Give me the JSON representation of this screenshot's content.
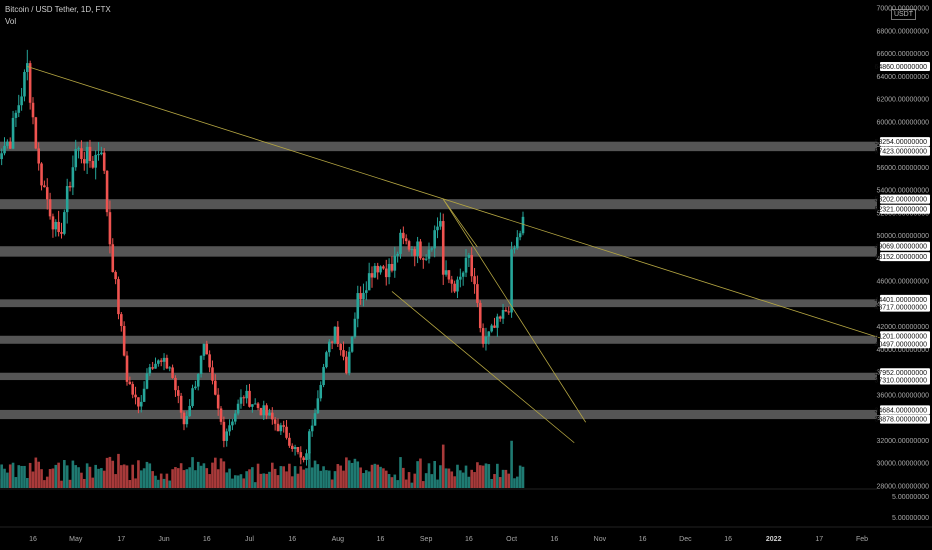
{
  "header": {
    "title": "Bitcoin / USD Tether, 1D, FTX",
    "indicator": "Vol",
    "currency_badge": "USDT"
  },
  "colors": {
    "background": "#000000",
    "up": "#26a69a",
    "down": "#ef5350",
    "vol_up": "#1f7a72",
    "vol_down": "#a83a3a",
    "band": "#9a9a9a",
    "trendline": "#b5a642",
    "axis_text": "#a8a8a8",
    "label_bg": "#ffffff"
  },
  "chart_data": {
    "type": "candlestick",
    "title": "",
    "y_axis": {
      "ticks": [
        "70000.00000000",
        "68000.00000000",
        "66000.00000000",
        "64000.00000000",
        "62000.00000000",
        "60000.00000000",
        "58000.00000000",
        "56000.00000000",
        "54000.00000000",
        "52000.00000000",
        "50000.00000000",
        "48000.00000000",
        "46000.00000000",
        "44000.00000000",
        "42000.00000000",
        "40000.00000000",
        "38000.00000000",
        "36000.00000000",
        "34000.00000000",
        "32000.00000000",
        "30000.00000000",
        "28000.00000000"
      ],
      "tick_values": [
        70000,
        68000,
        66000,
        64000,
        62000,
        60000,
        58000,
        56000,
        54000,
        52000,
        50000,
        48000,
        46000,
        44000,
        42000,
        40000,
        38000,
        36000,
        34000,
        32000,
        30000,
        28000
      ],
      "ylim": [
        27000,
        70500
      ],
      "volume_ticks": [
        "5.00000000",
        "5.00000000"
      ]
    },
    "x_axis": {
      "ticks": [
        "16",
        "May",
        "17",
        "Jun",
        "16",
        "Jul",
        "16",
        "Aug",
        "16",
        "Sep",
        "16",
        "Oct",
        "16",
        "Nov",
        "16",
        "Dec",
        "16",
        "2022",
        "17",
        "Feb"
      ],
      "tick_dates": [
        "2021-04-16",
        "2021-05-01",
        "2021-05-17",
        "2021-06-01",
        "2021-06-16",
        "2021-07-01",
        "2021-07-16",
        "2021-08-01",
        "2021-08-16",
        "2021-09-01",
        "2021-09-16",
        "2021-10-01",
        "2021-10-16",
        "2021-11-01",
        "2021-11-16",
        "2021-12-01",
        "2021-12-16",
        "2022-01-01",
        "2022-01-17",
        "2022-02-01"
      ],
      "bold": [
        "2022"
      ]
    },
    "level_labels": [
      "64860.00000000",
      "58254.00000000",
      "57423.00000000",
      "53202.00000000",
      "52321.00000000",
      "49069.00000000",
      "48152.00000000",
      "44401.00000000",
      "43717.00000000",
      "41201.00000000",
      "40497.00000000",
      "37952.00000000",
      "37310.00000000",
      "34684.00000000",
      "33878.00000000"
    ],
    "level_values": [
      64860,
      58254,
      57423,
      53202,
      52321,
      49069,
      48152,
      44401,
      43717,
      41201,
      40497,
      37952,
      37310,
      34684,
      33878
    ],
    "bands": [
      {
        "high": 58254,
        "low": 57423
      },
      {
        "high": 53202,
        "low": 52321
      },
      {
        "high": 49069,
        "low": 48152
      },
      {
        "high": 44401,
        "low": 43717
      },
      {
        "high": 41201,
        "low": 40497
      },
      {
        "high": 37952,
        "low": 37310
      },
      {
        "high": 34684,
        "low": 33878
      }
    ],
    "trendlines": [
      {
        "from": [
          "2021-04-14",
          64860
        ],
        "to": [
          "2022-02-10",
          40800
        ]
      },
      {
        "from": [
          "2021-09-07",
          53202
        ],
        "to": [
          "2021-10-27",
          33600
        ]
      },
      {
        "from": [
          "2021-08-20",
          45100
        ],
        "to": [
          "2021-10-23",
          31800
        ]
      },
      {
        "from": [
          "2021-09-07",
          53202
        ],
        "to": [
          "2021-09-19",
          49000
        ]
      }
    ],
    "anchors": [
      [
        "2021-04-02",
        57000
      ],
      [
        "2021-04-08",
        58500
      ],
      [
        "2021-04-14",
        64800
      ],
      [
        "2021-04-18",
        56000
      ],
      [
        "2021-04-25",
        49500
      ],
      [
        "2021-05-01",
        57500
      ],
      [
        "2021-05-07",
        56500
      ],
      [
        "2021-05-10",
        58000
      ],
      [
        "2021-05-13",
        49500
      ],
      [
        "2021-05-19",
        37500
      ],
      [
        "2021-05-23",
        34800
      ],
      [
        "2021-05-27",
        39000
      ],
      [
        "2021-06-03",
        38500
      ],
      [
        "2021-06-08",
        33500
      ],
      [
        "2021-06-15",
        40000
      ],
      [
        "2021-06-22",
        32500
      ],
      [
        "2021-06-29",
        36000
      ],
      [
        "2021-07-06",
        34500
      ],
      [
        "2021-07-14",
        32500
      ],
      [
        "2021-07-20",
        29900
      ],
      [
        "2021-07-26",
        37500
      ],
      [
        "2021-07-31",
        42000
      ],
      [
        "2021-08-04",
        38500
      ],
      [
        "2021-08-08",
        44500
      ],
      [
        "2021-08-14",
        47500
      ],
      [
        "2021-08-20",
        47000
      ],
      [
        "2021-08-23",
        49500
      ],
      [
        "2021-09-01",
        48500
      ],
      [
        "2021-09-06",
        51500
      ],
      [
        "2021-09-07",
        46500
      ],
      [
        "2021-09-12",
        45500
      ],
      [
        "2021-09-16",
        48000
      ],
      [
        "2021-09-21",
        40500
      ],
      [
        "2021-09-27",
        42500
      ],
      [
        "2021-09-30",
        43900
      ],
      [
        "2021-10-01",
        48000
      ],
      [
        "2021-10-05",
        51200
      ]
    ],
    "last_date": "2021-10-05"
  }
}
